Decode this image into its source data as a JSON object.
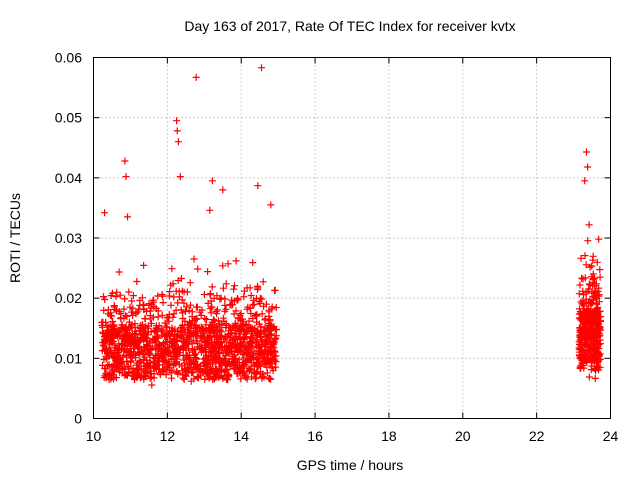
{
  "chart_data": {
    "type": "scatter",
    "title": "Day 163 of 2017, Rate Of TEC Index for receiver kvtx",
    "xlabel": "GPS time / hours",
    "ylabel": "ROTI / TECUs",
    "xlim": [
      10,
      24
    ],
    "ylim": [
      0,
      0.06
    ],
    "x_ticks": [
      10,
      12,
      14,
      16,
      18,
      20,
      22,
      24
    ],
    "x_tick_labels": [
      "10",
      "12",
      "14",
      "16",
      "18",
      "20",
      "22",
      "24"
    ],
    "y_ticks": [
      0,
      0.01,
      0.02,
      0.03,
      0.04,
      0.05,
      0.06
    ],
    "y_tick_labels": [
      "0",
      "0.01",
      "0.02",
      "0.03",
      "0.04",
      "0.05",
      "0.06"
    ],
    "grid": true,
    "marker": "+",
    "marker_color": "#ff0000",
    "series": [
      {
        "name": "ROTI",
        "notable_points": [
          {
            "x": 12.78,
            "y": 0.0567
          },
          {
            "x": 14.55,
            "y": 0.0583
          },
          {
            "x": 12.25,
            "y": 0.0495
          },
          {
            "x": 12.27,
            "y": 0.0478
          },
          {
            "x": 12.3,
            "y": 0.046
          },
          {
            "x": 12.35,
            "y": 0.0402
          },
          {
            "x": 10.85,
            "y": 0.0428
          },
          {
            "x": 10.88,
            "y": 0.0402
          },
          {
            "x": 13.22,
            "y": 0.0395
          },
          {
            "x": 14.45,
            "y": 0.0387
          },
          {
            "x": 13.5,
            "y": 0.038
          },
          {
            "x": 23.35,
            "y": 0.0443
          },
          {
            "x": 23.38,
            "y": 0.0418
          },
          {
            "x": 23.3,
            "y": 0.0395
          },
          {
            "x": 10.3,
            "y": 0.0342
          },
          {
            "x": 10.92,
            "y": 0.0335
          },
          {
            "x": 13.15,
            "y": 0.0346
          },
          {
            "x": 14.8,
            "y": 0.0355
          },
          {
            "x": 23.42,
            "y": 0.0322
          },
          {
            "x": 23.68,
            "y": 0.0298
          }
        ],
        "clusters": [
          {
            "x_start": 10.22,
            "x_end": 14.95,
            "y_min": 0.0045,
            "y_typical_max": 0.025,
            "y_median": 0.011,
            "count": 1500
          },
          {
            "x_start": 23.15,
            "x_end": 23.75,
            "y_min": 0.006,
            "y_typical_max": 0.027,
            "y_median": 0.013,
            "count": 400
          }
        ]
      }
    ]
  }
}
